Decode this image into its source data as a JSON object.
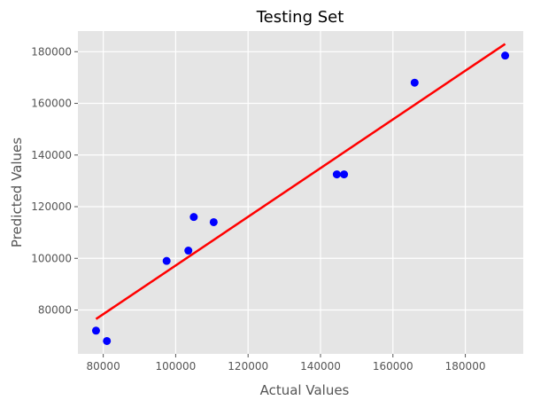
{
  "chart_data": {
    "type": "scatter",
    "title": "Testing Set",
    "xlabel": "Actual Values",
    "ylabel": "Predicted Values",
    "xlim": [
      73000,
      196000
    ],
    "ylim": [
      63000,
      188000
    ],
    "xticks": [
      80000,
      100000,
      120000,
      140000,
      160000,
      180000
    ],
    "yticks": [
      80000,
      100000,
      120000,
      140000,
      160000,
      180000
    ],
    "xtick_labels": [
      "80000",
      "100000",
      "120000",
      "140000",
      "160000",
      "180000"
    ],
    "ytick_labels": [
      "80000",
      "100000",
      "120000",
      "140000",
      "160000",
      "180000"
    ],
    "grid": true,
    "background": "#e5e5e5",
    "grid_color": "#ffffff",
    "points": [
      {
        "x": 78000,
        "y": 72000
      },
      {
        "x": 81000,
        "y": 68000
      },
      {
        "x": 97500,
        "y": 99000
      },
      {
        "x": 103500,
        "y": 103000
      },
      {
        "x": 105000,
        "y": 116000
      },
      {
        "x": 110500,
        "y": 114000
      },
      {
        "x": 144500,
        "y": 132500
      },
      {
        "x": 146500,
        "y": 132500
      },
      {
        "x": 166000,
        "y": 168000
      },
      {
        "x": 191000,
        "y": 178500
      }
    ],
    "point_color": "#0000ff",
    "fit_line": {
      "x": [
        78000,
        191000
      ],
      "y": [
        76500,
        183000
      ],
      "color": "#ff0000"
    }
  }
}
